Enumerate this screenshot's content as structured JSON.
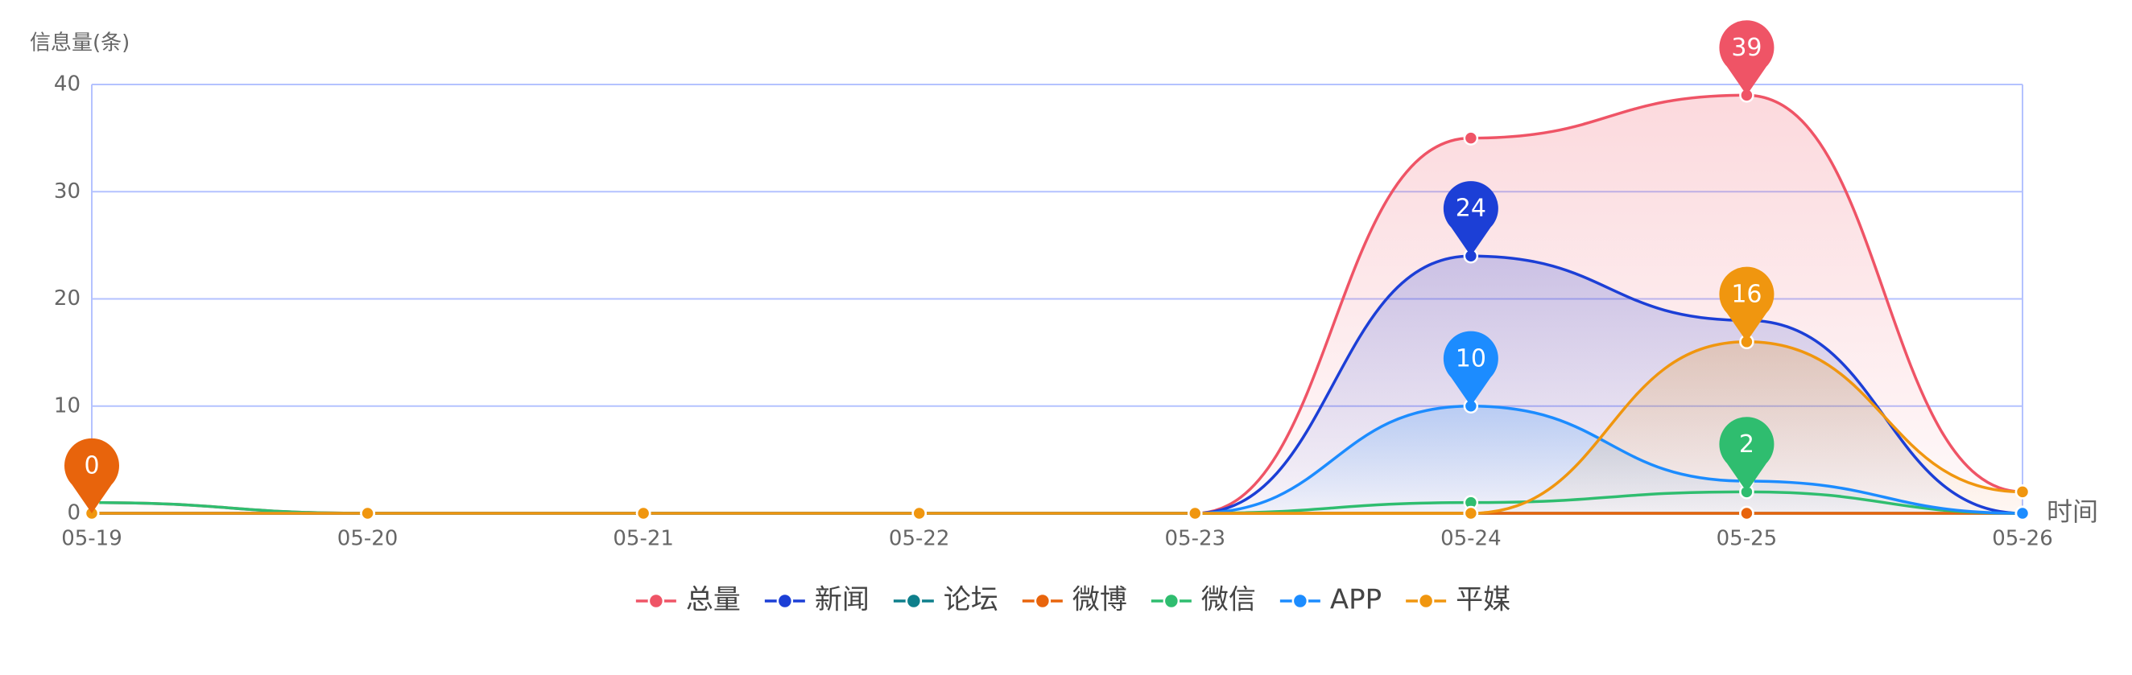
{
  "chart_data": {
    "type": "line",
    "y_axis_label": "信息量(条)",
    "x_axis_label": "时间",
    "categories": [
      "05-19",
      "05-20",
      "05-21",
      "05-22",
      "05-23",
      "05-24",
      "05-25",
      "05-26"
    ],
    "ylim": [
      0,
      40
    ],
    "yticks": [
      0,
      10,
      20,
      30,
      40
    ],
    "grid": true,
    "smooth": true,
    "legend": "bottom",
    "series": [
      {
        "name": "总量",
        "color": "#ef5466",
        "values": [
          1,
          0,
          0,
          0,
          0,
          35,
          39,
          2
        ],
        "area": true,
        "pin": true
      },
      {
        "name": "新闻",
        "color": "#1c3fd6",
        "values": [
          0,
          0,
          0,
          0,
          0,
          24,
          18,
          0
        ],
        "area": true,
        "pin": true
      },
      {
        "name": "论坛",
        "color": "#0e7f8b",
        "values": [
          0,
          0,
          0,
          0,
          0,
          0,
          0,
          0
        ],
        "area": false,
        "pin": false
      },
      {
        "name": "微博",
        "color": "#e8640c",
        "values": [
          0,
          0,
          0,
          0,
          0,
          0,
          0,
          0
        ],
        "area": false,
        "pin": true
      },
      {
        "name": "微信",
        "color": "#2fbd6f",
        "values": [
          1,
          0,
          0,
          0,
          0,
          1,
          2,
          0
        ],
        "area": false,
        "pin": true
      },
      {
        "name": "APP",
        "color": "#1c8cff",
        "values": [
          0,
          0,
          0,
          0,
          0,
          10,
          3,
          0
        ],
        "area": true,
        "pin": true
      },
      {
        "name": "平媒",
        "color": "#f0960f",
        "values": [
          0,
          0,
          0,
          0,
          0,
          0,
          16,
          2
        ],
        "area": true,
        "pin": true
      }
    ]
  }
}
